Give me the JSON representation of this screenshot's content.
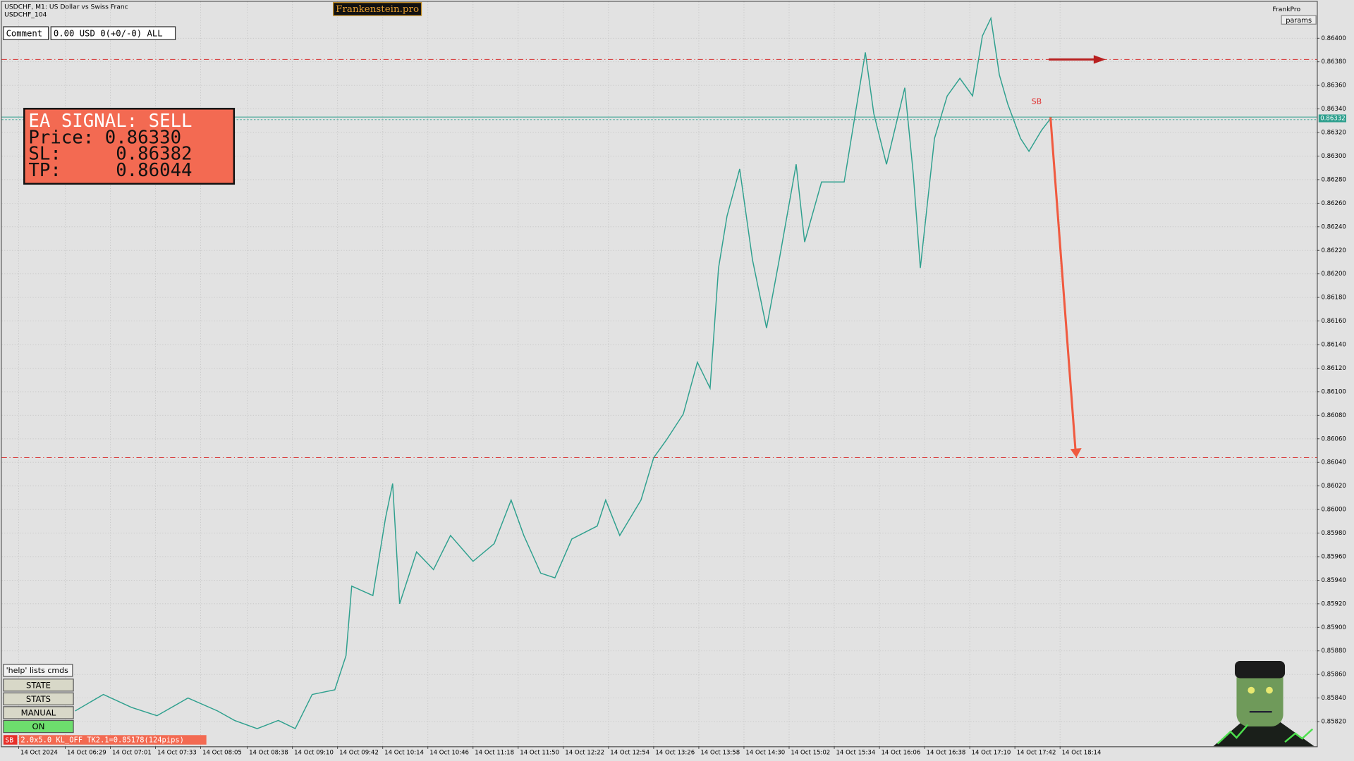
{
  "header": {
    "symbol": "USDCHF, M1:  US Dollar vs Swiss Franc",
    "account": "USDCHF_104",
    "brand": "Frankenstein.pro",
    "profile": "FrankPro",
    "params": "params"
  },
  "comment": {
    "label": "Comment",
    "value": "0.00 USD 0(+0/-0) ALL"
  },
  "signal": {
    "title": "EA SIGNAL: SELL",
    "lines": [
      "Price: 0.86330",
      "SL:     0.86382",
      "TP:     0.86044"
    ]
  },
  "controls": {
    "help": "'help' lists cmds",
    "buttons": [
      "STATE",
      "STATS",
      "MANUAL",
      "ON"
    ]
  },
  "status": {
    "tag": "SB",
    "text": "2.0x5.0 KL_OFF TK2.1=0.85178(124pips)"
  },
  "chart_data": {
    "type": "line",
    "color": "#2fa08e",
    "grid": true,
    "x": [
      52,
      72,
      92,
      110,
      132,
      153,
      165,
      181,
      196,
      208,
      220,
      236,
      244,
      248,
      263,
      272,
      277,
      282,
      294,
      306,
      318,
      334,
      349,
      361,
      370,
      382,
      392,
      404,
      422,
      428,
      438,
      453,
      462,
      471,
      483,
      493,
      502,
      508,
      514,
      523,
      532,
      542,
      551,
      563,
      569,
      581,
      597,
      606,
      612,
      618,
      627,
      640,
      646,
      651,
      661,
      670,
      679,
      688,
      695,
      701,
      707,
      713,
      722,
      728,
      737,
      744
    ],
    "values": [
      0.85829,
      0.85843,
      0.85832,
      0.85825,
      0.8584,
      0.85829,
      0.85821,
      0.85814,
      0.85821,
      0.85814,
      0.85843,
      0.85847,
      0.85876,
      0.85935,
      0.85927,
      0.85993,
      0.86022,
      0.8592,
      0.85964,
      0.85949,
      0.85978,
      0.85956,
      0.85971,
      0.86008,
      0.85978,
      0.85946,
      0.85942,
      0.85975,
      0.85986,
      0.86008,
      0.85978,
      0.86008,
      0.86044,
      0.86059,
      0.86081,
      0.86125,
      0.86103,
      0.86205,
      0.86249,
      0.86289,
      0.86212,
      0.86154,
      0.86212,
      0.86293,
      0.86227,
      0.86278,
      0.86278,
      0.86344,
      0.86388,
      0.86336,
      0.86293,
      0.86358,
      0.86285,
      0.86205,
      0.86315,
      0.86351,
      0.86366,
      0.86351,
      0.86402,
      0.86417,
      0.86369,
      0.86344,
      0.86315,
      0.86304,
      0.86322,
      0.86333
    ],
    "xlim": [
      0,
      932
    ],
    "ylim": [
      0.85799,
      0.86431
    ],
    "xticks": [
      {
        "value": 12,
        "label": "14 Oct 2024"
      },
      {
        "value": 45,
        "label": "14 Oct 06:29"
      },
      {
        "value": 77,
        "label": "14 Oct 07:01"
      },
      {
        "value": 109,
        "label": "14 Oct 07:33"
      },
      {
        "value": 141,
        "label": "14 Oct 08:05"
      },
      {
        "value": 174,
        "label": "14 Oct 08:38"
      },
      {
        "value": 206,
        "label": "14 Oct 09:10"
      },
      {
        "value": 238,
        "label": "14 Oct 09:42"
      },
      {
        "value": 270,
        "label": "14 Oct 10:14"
      },
      {
        "value": 302,
        "label": "14 Oct 10:46"
      },
      {
        "value": 334,
        "label": "14 Oct 11:18"
      },
      {
        "value": 366,
        "label": "14 Oct 11:50"
      },
      {
        "value": 398,
        "label": "14 Oct 12:22"
      },
      {
        "value": 430,
        "label": "14 Oct 12:54"
      },
      {
        "value": 462,
        "label": "14 Oct 13:26"
      },
      {
        "value": 494,
        "label": "14 Oct 13:58"
      },
      {
        "value": 526,
        "label": "14 Oct 14:30"
      },
      {
        "value": 558,
        "label": "14 Oct 15:02"
      },
      {
        "value": 590,
        "label": "14 Oct 15:34"
      },
      {
        "value": 622,
        "label": "14 Oct 16:06"
      },
      {
        "value": 654,
        "label": "14 Oct 16:38"
      },
      {
        "value": 686,
        "label": "14 Oct 17:10"
      },
      {
        "value": 718,
        "label": "14 Oct 17:42"
      },
      {
        "value": 750,
        "label": "14 Oct 18:14"
      }
    ],
    "yticks": [
      {
        "value": 0.8582,
        "label": "0.85820"
      },
      {
        "value": 0.8584,
        "label": "0.85840"
      },
      {
        "value": 0.8586,
        "label": "0.85860"
      },
      {
        "value": 0.8588,
        "label": "0.85880"
      },
      {
        "value": 0.859,
        "label": "0.85900"
      },
      {
        "value": 0.8592,
        "label": "0.85920"
      },
      {
        "value": 0.8594,
        "label": "0.85940"
      },
      {
        "value": 0.8596,
        "label": "0.85960"
      },
      {
        "value": 0.8598,
        "label": "0.85980"
      },
      {
        "value": 0.86,
        "label": "0.86000"
      },
      {
        "value": 0.8602,
        "label": "0.86020"
      },
      {
        "value": 0.8604,
        "label": "0.86040"
      },
      {
        "value": 0.8606,
        "label": "0.86060"
      },
      {
        "value": 0.8608,
        "label": "0.86080"
      },
      {
        "value": 0.861,
        "label": "0.86100"
      },
      {
        "value": 0.8612,
        "label": "0.86120"
      },
      {
        "value": 0.8614,
        "label": "0.86140"
      },
      {
        "value": 0.8616,
        "label": "0.86160"
      },
      {
        "value": 0.8618,
        "label": "0.86180"
      },
      {
        "value": 0.862,
        "label": "0.86200"
      },
      {
        "value": 0.8622,
        "label": "0.86220"
      },
      {
        "value": 0.8624,
        "label": "0.86240"
      },
      {
        "value": 0.8626,
        "label": "0.86260"
      },
      {
        "value": 0.8628,
        "label": "0.86280"
      },
      {
        "value": 0.863,
        "label": "0.86300"
      },
      {
        "value": 0.8632,
        "label": "0.86320"
      },
      {
        "value": 0.8634,
        "label": "0.86340"
      },
      {
        "value": 0.8636,
        "label": "0.86360"
      },
      {
        "value": 0.8638,
        "label": "0.86380"
      },
      {
        "value": 0.864,
        "label": "0.86400"
      }
    ],
    "levels": [
      {
        "value": 0.86382,
        "color": "#d83030"
      },
      {
        "value": 0.86044,
        "color": "#d83030"
      }
    ],
    "price_tag": {
      "value": 0.86332,
      "label": "0.86332",
      "color": "#2fa08e"
    },
    "annotation": {
      "text": "SB",
      "x": 742,
      "value": 0.86333
    }
  }
}
